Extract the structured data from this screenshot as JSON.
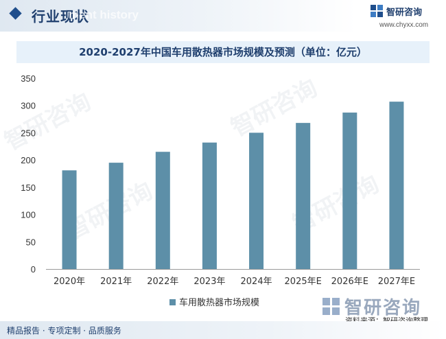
{
  "header": {
    "section_title": "行业现状",
    "section_subtitle": "ment history",
    "logo_text": "智研咨询",
    "site_url": "www.chyxx.com"
  },
  "chart_data": {
    "type": "bar",
    "title": "2020-2027年中国车用散热器市场规模及预测（单位：亿元）",
    "categories": [
      "2020年",
      "2021年",
      "2022年",
      "2023年",
      "2024年",
      "2025年E",
      "2026年E",
      "2027年E"
    ],
    "series": [
      {
        "name": "车用散热器市场规模",
        "values": [
          181,
          195,
          215,
          232,
          250,
          268,
          287,
          307
        ]
      }
    ],
    "ylim": [
      0,
      350
    ],
    "yticks": [
      0,
      50,
      100,
      150,
      200,
      250,
      300,
      350
    ],
    "xlabel": "",
    "ylabel": "",
    "grid": false,
    "legend_position": "bottom",
    "bar_color": "#5d8fa8"
  },
  "watermark_text": "智研咨询",
  "bottom_logo_text": "智研咨询",
  "source": "资料来源：智研咨询整理",
  "footer": "精品报告 · 专项定制 · 品质服务"
}
